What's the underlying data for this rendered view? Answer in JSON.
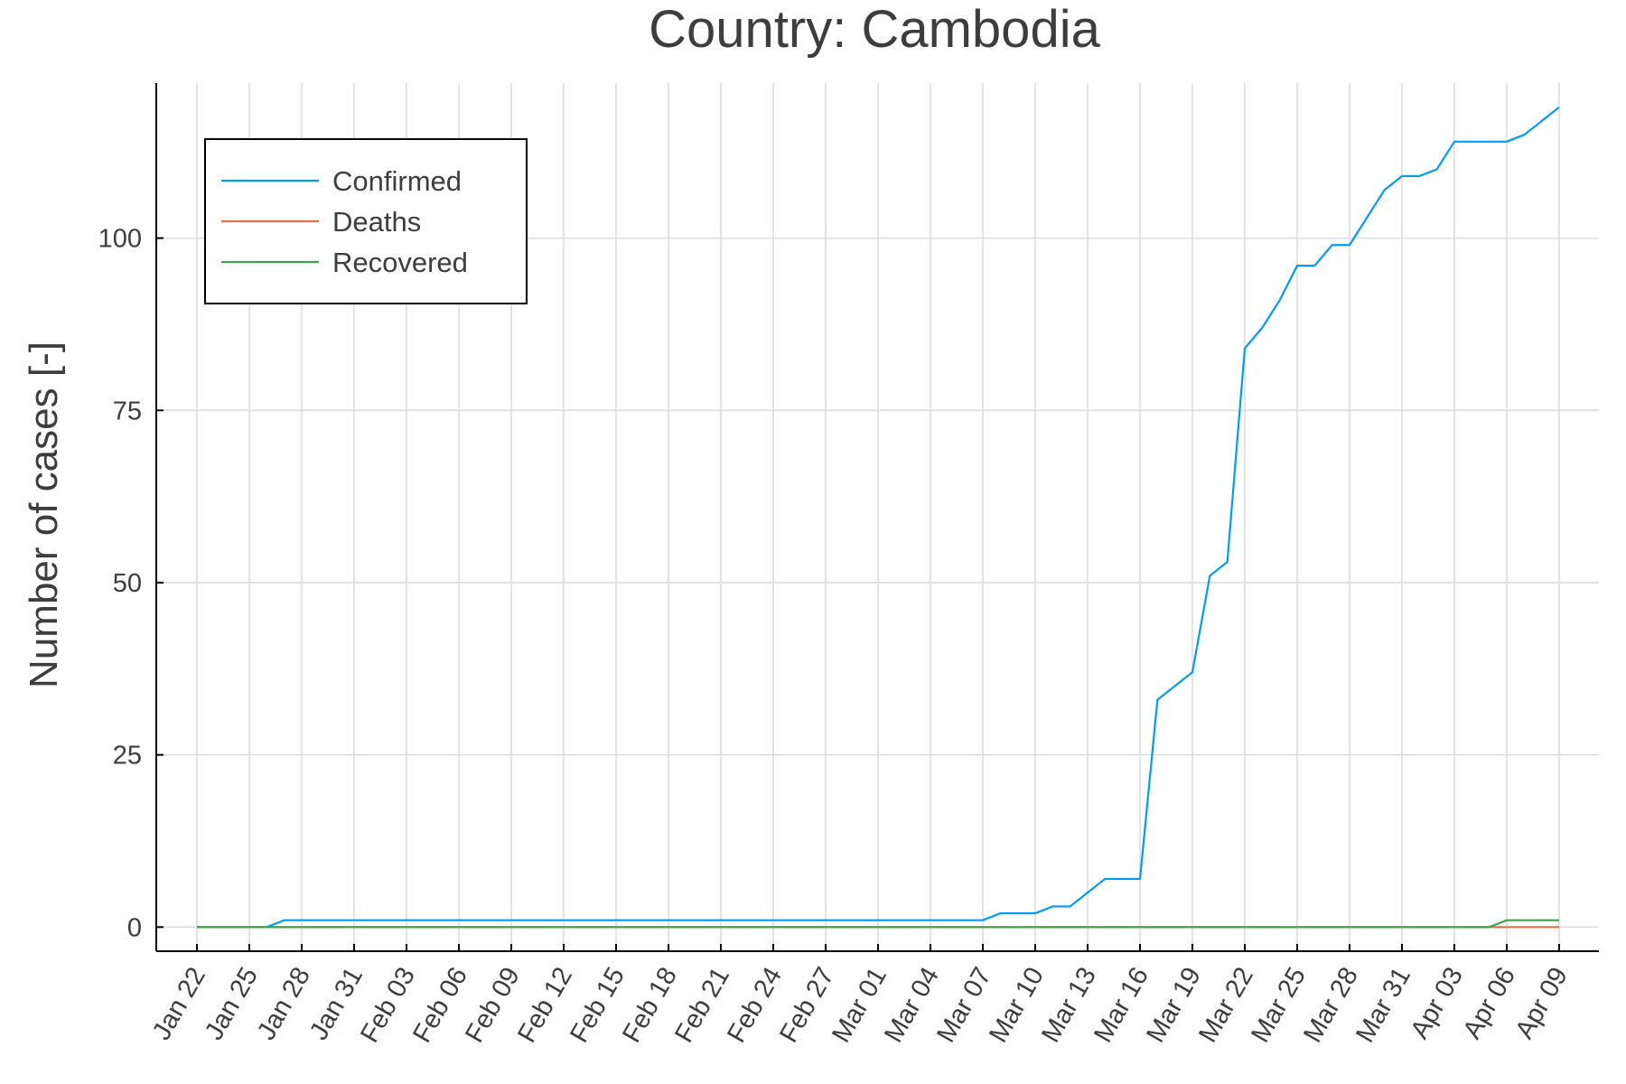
{
  "chart_data": {
    "type": "line",
    "title": "Country: Cambodia",
    "xlabel": "",
    "ylabel": "Number of cases [-]",
    "x_tick_labels": [
      "Jan 22",
      "Jan 25",
      "Jan 28",
      "Jan 31",
      "Feb 03",
      "Feb 06",
      "Feb 09",
      "Feb 12",
      "Feb 15",
      "Feb 18",
      "Feb 21",
      "Feb 24",
      "Feb 27",
      "Mar 01",
      "Mar 04",
      "Mar 07",
      "Mar 10",
      "Mar 13",
      "Mar 16",
      "Mar 19",
      "Mar 22",
      "Mar 25",
      "Mar 28",
      "Mar 31",
      "Apr 03",
      "Apr 06",
      "Apr 09"
    ],
    "y_ticks": [
      "0",
      "25",
      "50",
      "75",
      "100"
    ],
    "ylim": [
      -3.5,
      122.5
    ],
    "grid": true,
    "legend_position": "top-left",
    "x_values": [
      "Jan 22",
      "Jan 23",
      "Jan 24",
      "Jan 25",
      "Jan 26",
      "Jan 27",
      "Jan 28",
      "Jan 29",
      "Jan 30",
      "Jan 31",
      "Feb 01",
      "Feb 02",
      "Feb 03",
      "Feb 04",
      "Feb 05",
      "Feb 06",
      "Feb 07",
      "Feb 08",
      "Feb 09",
      "Feb 10",
      "Feb 11",
      "Feb 12",
      "Feb 13",
      "Feb 14",
      "Feb 15",
      "Feb 16",
      "Feb 17",
      "Feb 18",
      "Feb 19",
      "Feb 20",
      "Feb 21",
      "Feb 22",
      "Feb 23",
      "Feb 24",
      "Feb 25",
      "Feb 26",
      "Feb 27",
      "Feb 28",
      "Feb 29",
      "Mar 01",
      "Mar 02",
      "Mar 03",
      "Mar 04",
      "Mar 05",
      "Mar 06",
      "Mar 07",
      "Mar 08",
      "Mar 09",
      "Mar 10",
      "Mar 11",
      "Mar 12",
      "Mar 13",
      "Mar 14",
      "Mar 15",
      "Mar 16",
      "Mar 17",
      "Mar 18",
      "Mar 19",
      "Mar 20",
      "Mar 21",
      "Mar 22",
      "Mar 23",
      "Mar 24",
      "Mar 25",
      "Mar 26",
      "Mar 27",
      "Mar 28",
      "Mar 29",
      "Mar 30",
      "Mar 31",
      "Apr 01",
      "Apr 02",
      "Apr 03",
      "Apr 04",
      "Apr 05",
      "Apr 06",
      "Apr 07",
      "Apr 08",
      "Apr 09"
    ],
    "series": [
      {
        "name": "Confirmed",
        "color": "#009af9",
        "values": [
          0,
          0,
          0,
          0,
          0,
          1,
          1,
          1,
          1,
          1,
          1,
          1,
          1,
          1,
          1,
          1,
          1,
          1,
          1,
          1,
          1,
          1,
          1,
          1,
          1,
          1,
          1,
          1,
          1,
          1,
          1,
          1,
          1,
          1,
          1,
          1,
          1,
          1,
          1,
          1,
          1,
          1,
          1,
          1,
          1,
          1,
          2,
          2,
          2,
          3,
          3,
          5,
          7,
          7,
          7,
          33,
          35,
          37,
          51,
          53,
          84,
          87,
          91,
          96,
          96,
          99,
          99,
          103,
          107,
          109,
          109,
          110,
          114,
          114,
          114,
          114,
          115,
          117,
          119
        ]
      },
      {
        "name": "Deaths",
        "color": "#e26f46",
        "values": [
          0,
          0,
          0,
          0,
          0,
          0,
          0,
          0,
          0,
          0,
          0,
          0,
          0,
          0,
          0,
          0,
          0,
          0,
          0,
          0,
          0,
          0,
          0,
          0,
          0,
          0,
          0,
          0,
          0,
          0,
          0,
          0,
          0,
          0,
          0,
          0,
          0,
          0,
          0,
          0,
          0,
          0,
          0,
          0,
          0,
          0,
          0,
          0,
          0,
          0,
          0,
          0,
          0,
          0,
          0,
          0,
          0,
          0,
          0,
          0,
          0,
          0,
          0,
          0,
          0,
          0,
          0,
          0,
          0,
          0,
          0,
          0,
          0,
          0,
          0,
          0,
          0,
          0,
          0
        ]
      },
      {
        "name": "Recovered",
        "color": "#3da44d",
        "values": [
          0,
          0,
          0,
          0,
          0,
          0,
          0,
          0,
          0,
          0,
          0,
          0,
          0,
          0,
          0,
          0,
          0,
          0,
          0,
          0,
          0,
          0,
          0,
          0,
          0,
          0,
          0,
          0,
          0,
          0,
          0,
          0,
          0,
          0,
          0,
          0,
          0,
          0,
          0,
          0,
          0,
          0,
          0,
          0,
          0,
          0,
          0,
          0,
          0,
          0,
          0,
          0,
          0,
          0,
          0,
          0,
          0,
          0,
          0,
          0,
          0,
          0,
          0,
          0,
          0,
          0,
          0,
          0,
          0,
          0,
          0,
          0,
          0,
          0,
          0,
          1,
          1,
          1,
          1
        ]
      }
    ]
  }
}
